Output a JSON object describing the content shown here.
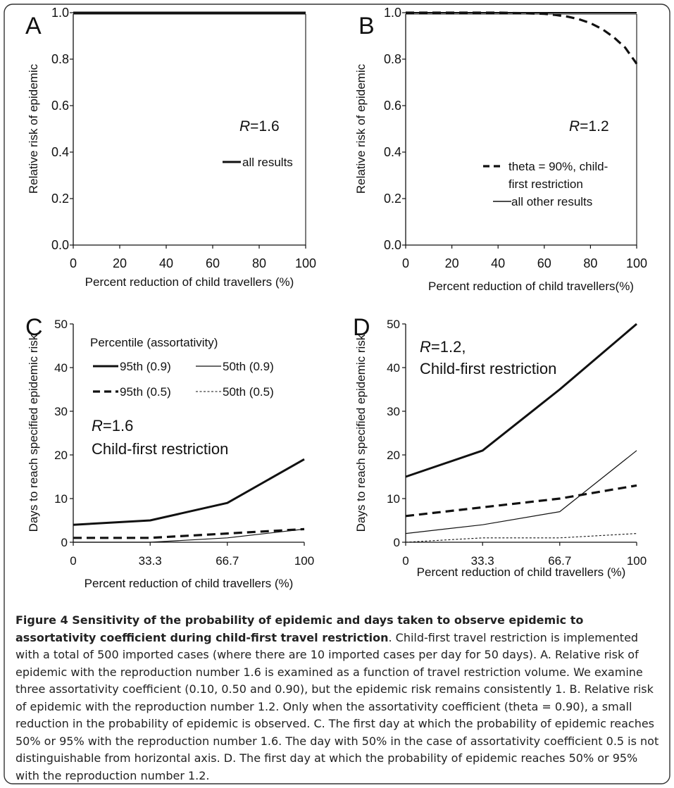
{
  "figure": {
    "caption_title": "Figure 4 Sensitivity of the probability of epidemic and days taken to observe epidemic to assortativity coefficient during child-first travel restriction",
    "caption_body": ". Child-first travel restriction is implemented with a total of 500 imported cases (where there are 10 imported cases per day for 50 days). A. Relative risk of epidemic with the reproduction number 1.6 is examined as a function of travel restriction volume. We examine three assortativity coefficient (0.10, 0.50 and 0.90), but the epidemic risk remains consistently 1. B. Relative risk of epidemic with the reproduction number 1.2. Only when the assortativity coefficient (theta = 0.90), a small reduction in the probability of epidemic is observed. C. The first day at which the probability of epidemic reaches 50% or 95% with the reproduction number 1.6. The day with 50% in the case of assortativity coefficient 0.5 is not distinguishable from horizontal axis. D. The first day at which the probability of epidemic reaches 50% or 95% with the reproduction number 1.2."
  },
  "chart_data": [
    {
      "panel": "A",
      "type": "line",
      "xlabel": "Percent reduction of child travellers (%)",
      "ylabel": "Relative risk of epidemic",
      "xlim": [
        0,
        100
      ],
      "ylim": [
        0,
        1.0
      ],
      "xticks": [
        "0",
        "20",
        "40",
        "60",
        "80",
        "100"
      ],
      "xtick_values": [
        0,
        20,
        40,
        60,
        80,
        100
      ],
      "yticks": [
        "0.0",
        "0.2",
        "0.4",
        "0.6",
        "0.8",
        "1.0"
      ],
      "ytick_values": [
        0,
        0.2,
        0.4,
        0.6,
        0.8,
        1.0
      ],
      "annotation": {
        "italic": "R",
        "rest": "=1.6"
      },
      "series": [
        {
          "name": "all results",
          "style": "solid-thick",
          "x": [
            0,
            100
          ],
          "y": [
            1.0,
            1.0
          ]
        }
      ]
    },
    {
      "panel": "B",
      "type": "line",
      "xlabel": "Percent reduction of child travellers(%)",
      "ylabel": "Relative risk of epidemic",
      "xlim": [
        0,
        100
      ],
      "ylim": [
        0,
        1.0
      ],
      "xticks": [
        "0",
        "20",
        "40",
        "60",
        "80",
        "100"
      ],
      "xtick_values": [
        0,
        20,
        40,
        60,
        80,
        100
      ],
      "yticks": [
        "0.0",
        "0.2",
        "0.4",
        "0.6",
        "0.8",
        "1.0"
      ],
      "ytick_values": [
        0,
        0.2,
        0.4,
        0.6,
        0.8,
        1.0
      ],
      "annotation": {
        "italic": "R",
        "rest": "=1.2"
      },
      "series": [
        {
          "name": "theta = 90%, child-first restriction",
          "legend_lines": [
            "theta = 90%, child-",
            "first restriction"
          ],
          "style": "dashed-thick",
          "x": [
            0,
            40,
            50,
            60,
            65,
            70,
            75,
            80,
            85,
            90,
            95,
            100
          ],
          "y": [
            1.0,
            1.0,
            0.998,
            0.995,
            0.99,
            0.983,
            0.972,
            0.955,
            0.93,
            0.895,
            0.85,
            0.78
          ]
        },
        {
          "name": "all other results",
          "style": "solid",
          "x": [
            0,
            100
          ],
          "y": [
            1.0,
            1.0
          ]
        }
      ]
    },
    {
      "panel": "C",
      "type": "line",
      "xlabel": "Percent reduction of child travellers (%)",
      "ylabel": "Days to reach specified epidemic risk",
      "xlim": [
        0,
        100
      ],
      "ylim": [
        0,
        50
      ],
      "xticks": [
        "0",
        "33.3",
        "66.7",
        "100"
      ],
      "xtick_values": [
        0,
        33.3,
        66.7,
        100
      ],
      "yticks": [
        "0",
        "10",
        "20",
        "30",
        "40",
        "50"
      ],
      "ytick_values": [
        0,
        10,
        20,
        30,
        40,
        50
      ],
      "annotation_lines": [
        {
          "italic": "R",
          "rest": "=1.6"
        },
        {
          "italic": "",
          "rest": "Child-first restriction"
        }
      ],
      "legend_title": "Percentile (assortativity)",
      "series": [
        {
          "name": "95th (0.9)",
          "style": "solid-thick",
          "x": [
            0,
            33.3,
            66.7,
            100
          ],
          "y": [
            4,
            5,
            9,
            19
          ]
        },
        {
          "name": "50th (0.9)",
          "style": "solid-thin",
          "x": [
            0,
            33.3,
            66.7,
            100
          ],
          "y": [
            0,
            0,
            1,
            3
          ]
        },
        {
          "name": "95th (0.5)",
          "style": "dashed-thick",
          "x": [
            0,
            33.3,
            66.7,
            100
          ],
          "y": [
            1,
            1,
            2,
            3
          ]
        },
        {
          "name": "50th (0.5)",
          "style": "dotted-thin",
          "x": [
            0,
            33.3,
            66.7,
            100
          ],
          "y": [
            0,
            0,
            0,
            0
          ]
        }
      ]
    },
    {
      "panel": "D",
      "type": "line",
      "xlabel": "Percent reduction of child travellers (%)",
      "ylabel": "Days to reach specified epidemic risk",
      "xlim": [
        0,
        100
      ],
      "ylim": [
        0,
        50
      ],
      "xticks": [
        "0",
        "33.3",
        "66.7",
        "100"
      ],
      "xtick_values": [
        0,
        33.3,
        66.7,
        100
      ],
      "yticks": [
        "0",
        "10",
        "20",
        "30",
        "40",
        "50"
      ],
      "ytick_values": [
        0,
        10,
        20,
        30,
        40,
        50
      ],
      "annotation_lines": [
        {
          "italic": "R",
          "rest": "=1.2,"
        },
        {
          "italic": "",
          "rest": "Child-first restriction"
        }
      ],
      "series": [
        {
          "name": "95th (0.9)",
          "style": "solid-thick",
          "x": [
            0,
            33.3,
            66.7,
            100
          ],
          "y": [
            15,
            21,
            35,
            50
          ]
        },
        {
          "name": "50th (0.9)",
          "style": "solid-thin",
          "x": [
            0,
            33.3,
            66.7,
            100
          ],
          "y": [
            2,
            4,
            7,
            21
          ]
        },
        {
          "name": "95th (0.5)",
          "style": "dashed-thick",
          "x": [
            0,
            33.3,
            66.7,
            100
          ],
          "y": [
            6,
            8,
            10,
            13
          ]
        },
        {
          "name": "50th (0.5)",
          "style": "dotted-thin",
          "x": [
            0,
            33.3,
            66.7,
            100
          ],
          "y": [
            0,
            1,
            1,
            2
          ]
        }
      ]
    }
  ]
}
